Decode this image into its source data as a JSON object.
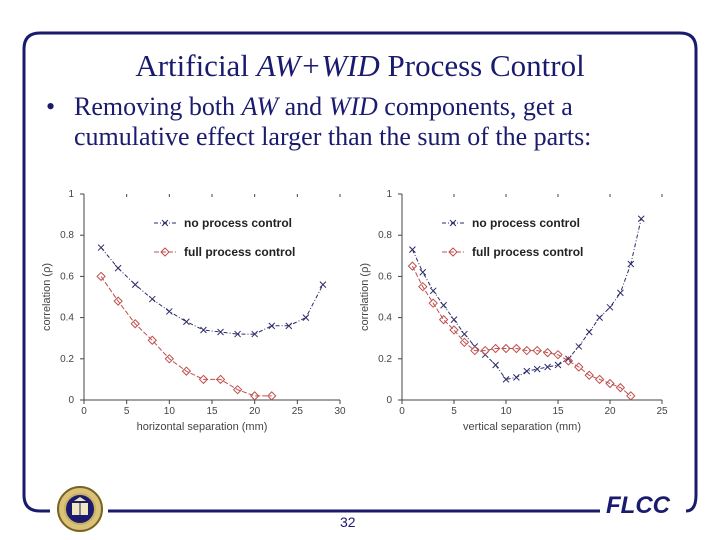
{
  "slide": {
    "title_prefix": "Artificial ",
    "title_italic": "AW+WID",
    "title_suffix": " Process Control",
    "bullet_symbol": "•",
    "bullet_parts": [
      "Removing both ",
      "AW",
      " and ",
      "WID",
      " components, get a cumulative effect larger than the sum of the parts:"
    ],
    "page_number": "32",
    "logo_text": "FLCC"
  },
  "colors": {
    "accent": "#1a1a6e",
    "no_control": "#2b2b6b",
    "full_control": "#c0504d"
  },
  "chart_data": [
    {
      "type": "line",
      "xlabel": "horizontal separation (mm)",
      "ylabel": "correlation (ρ)",
      "xlim": [
        0,
        30
      ],
      "ylim": [
        0,
        1
      ],
      "xticks": [
        0,
        5,
        10,
        15,
        20,
        25,
        30
      ],
      "yticks": [
        0,
        0.2,
        0.4,
        0.6,
        0.8,
        1
      ],
      "ytick_labels": [
        "0",
        "0.2",
        "0.4",
        "0.6",
        "0.8",
        "1"
      ],
      "legend": "top-right",
      "series": [
        {
          "name": "no process control",
          "marker": "x",
          "x": [
            2,
            4,
            6,
            8,
            10,
            12,
            14,
            16,
            18,
            20,
            22,
            24,
            26,
            28
          ],
          "y": [
            0.74,
            0.64,
            0.56,
            0.49,
            0.43,
            0.38,
            0.34,
            0.33,
            0.32,
            0.32,
            0.36,
            0.36,
            0.4,
            0.56
          ]
        },
        {
          "name": "full process control",
          "marker": "diamond",
          "x": [
            2,
            4,
            6,
            8,
            10,
            12,
            14,
            16,
            18,
            20,
            22
          ],
          "y": [
            0.6,
            0.48,
            0.37,
            0.29,
            0.2,
            0.14,
            0.1,
            0.1,
            0.05,
            0.02,
            0.02
          ]
        }
      ]
    },
    {
      "type": "line",
      "xlabel": "vertical separation (mm)",
      "ylabel": "correlation (ρ)",
      "xlim": [
        0,
        25
      ],
      "ylim": [
        0,
        1
      ],
      "xticks": [
        0,
        5,
        10,
        15,
        20,
        25
      ],
      "yticks": [
        0,
        0.2,
        0.4,
        0.6,
        0.8,
        1
      ],
      "ytick_labels": [
        "0",
        "0.2",
        "0.4",
        "0.6",
        "0.8",
        "1"
      ],
      "legend": "top-right",
      "series": [
        {
          "name": "no process control",
          "marker": "x",
          "x": [
            1,
            2,
            3,
            4,
            5,
            6,
            7,
            8,
            9,
            10,
            11,
            12,
            13,
            14,
            15,
            16,
            17,
            18,
            19,
            20,
            21,
            22,
            23
          ],
          "y": [
            0.73,
            0.62,
            0.53,
            0.46,
            0.39,
            0.32,
            0.26,
            0.22,
            0.17,
            0.1,
            0.11,
            0.14,
            0.15,
            0.16,
            0.17,
            0.2,
            0.26,
            0.33,
            0.4,
            0.45,
            0.52,
            0.66,
            0.88
          ]
        },
        {
          "name": "full process control",
          "marker": "diamond",
          "x": [
            1,
            2,
            3,
            4,
            5,
            6,
            7,
            8,
            9,
            10,
            11,
            12,
            13,
            14,
            15,
            16,
            17,
            18,
            19,
            20,
            21,
            22
          ],
          "y": [
            0.65,
            0.55,
            0.47,
            0.39,
            0.34,
            0.28,
            0.24,
            0.24,
            0.25,
            0.25,
            0.25,
            0.24,
            0.24,
            0.23,
            0.22,
            0.19,
            0.16,
            0.12,
            0.1,
            0.08,
            0.06,
            0.02
          ]
        }
      ]
    }
  ]
}
